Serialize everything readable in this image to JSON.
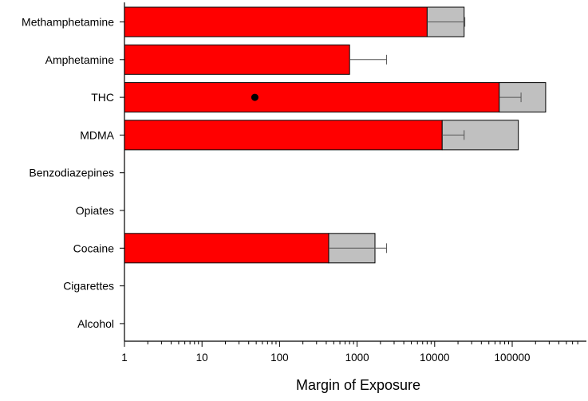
{
  "chart_data": {
    "type": "bar",
    "orientation": "horizontal",
    "x_scale": "log",
    "xlabel": "Margin of Exposure",
    "ylabel": "",
    "title": "",
    "xlim": [
      1,
      700000
    ],
    "x_ticks": [
      {
        "value": 1,
        "label": "1"
      },
      {
        "value": 10,
        "label": "10"
      },
      {
        "value": 100,
        "label": "100"
      },
      {
        "value": 1000,
        "label": "1000"
      },
      {
        "value": 10000,
        "label": "10000"
      },
      {
        "value": 100000,
        "label": "100000"
      }
    ],
    "categories": [
      "Methamphetamine",
      "Amphetamine",
      "THC",
      "MDMA",
      "Benzodiazepines",
      "Opiates",
      "Cocaine",
      "Cigarettes",
      "Alcohol"
    ],
    "series": [
      {
        "color": "#ff0000",
        "values": [
          8000,
          800,
          68000,
          12500,
          null,
          null,
          430,
          null,
          null
        ]
      },
      {
        "color": "#c0c0c0",
        "values": [
          24000,
          null,
          270000,
          120000,
          null,
          null,
          1700,
          null,
          null
        ]
      }
    ],
    "error_bars": [
      {
        "category": "Methamphetamine",
        "low": 8000,
        "high": 24500
      },
      {
        "category": "Amphetamine",
        "low": 800,
        "high": 2400
      },
      {
        "category": "THC",
        "low": 68000,
        "high": 130000
      },
      {
        "category": "MDMA",
        "low": 12500,
        "high": 24000
      },
      {
        "category": "Cocaine",
        "low": 430,
        "high": 2400
      }
    ],
    "markers": [
      {
        "category": "THC",
        "value": 48,
        "shape": "dot"
      }
    ],
    "grid": false,
    "legend": "none"
  }
}
